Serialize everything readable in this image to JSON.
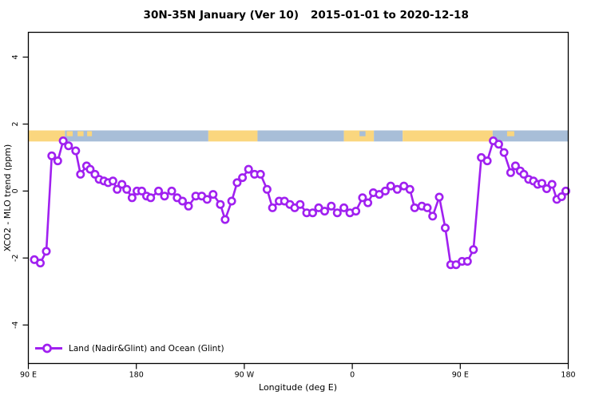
{
  "figure": {
    "title_part1": "30N-35N January (Ver 10)",
    "title_part2": "2015-01-01 to 2020-12-18"
  },
  "chart_data": {
    "type": "line",
    "title": "30N-35N January (Ver 10)   2015-01-01 to 2020-12-18",
    "xlabel": "Longitude (deg E)",
    "ylabel": "XCO2 - MLO trend (ppm)",
    "xlim": [
      90,
      540
    ],
    "ylim": [
      -5.15,
      4.74
    ],
    "grid": false,
    "xticks": {
      "values": [
        90,
        180,
        270,
        360,
        450,
        540
      ],
      "labels": [
        "90 E",
        "180",
        "90 W",
        "0",
        "90 E",
        "180"
      ]
    },
    "yticks": {
      "values": [
        -4,
        -2,
        0,
        2,
        4
      ],
      "labels": [
        "-4",
        "-2",
        "0",
        "2",
        "4"
      ]
    },
    "legend": {
      "position": "bottom-left",
      "entries": [
        "Land (Nadir&Glint) and Ocean (Glint)"
      ]
    },
    "colors": {
      "line": "#A020F0",
      "marker_fill": "#ffffff",
      "land": "#FAD67E",
      "ocean": "#A8BED8",
      "axis": "#000000"
    },
    "surface_band": {
      "y_from": 1.48,
      "y_to": 1.81,
      "segments": [
        {
          "from": 90,
          "to": 120.5,
          "surface": "land"
        },
        {
          "from": 120.5,
          "to": 240,
          "surface": "ocean"
        },
        {
          "from": 240,
          "to": 281,
          "surface": "land"
        },
        {
          "from": 281,
          "to": 353,
          "surface": "ocean"
        },
        {
          "from": 353,
          "to": 378,
          "surface": "land"
        },
        {
          "from": 378,
          "to": 402,
          "surface": "ocean"
        },
        {
          "from": 402,
          "to": 477,
          "surface": "land"
        },
        {
          "from": 477,
          "to": 540,
          "surface": "ocean"
        }
      ],
      "speckles": [
        {
          "from": 122,
          "to": 127,
          "surface": "land"
        },
        {
          "from": 131,
          "to": 136,
          "surface": "land"
        },
        {
          "from": 139,
          "to": 143,
          "surface": "land"
        },
        {
          "from": 366,
          "to": 371,
          "surface": "ocean"
        },
        {
          "from": 489,
          "to": 495,
          "surface": "land"
        }
      ]
    },
    "series": [
      {
        "name": "Land (Nadir&Glint) and Ocean (Glint)",
        "marker": "open-circle",
        "points": [
          [
            95,
            -2.05
          ],
          [
            100,
            -2.15
          ],
          [
            105,
            -1.8
          ],
          [
            109.5,
            1.05
          ],
          [
            114.5,
            0.9
          ],
          [
            119,
            1.5
          ],
          [
            123.5,
            1.35
          ],
          [
            129.5,
            1.2
          ],
          [
            133.5,
            0.5
          ],
          [
            138.5,
            0.75
          ],
          [
            141.5,
            0.65
          ],
          [
            145.5,
            0.5
          ],
          [
            149,
            0.35
          ],
          [
            153,
            0.3
          ],
          [
            156.5,
            0.25
          ],
          [
            160.5,
            0.3
          ],
          [
            164,
            0.05
          ],
          [
            168,
            0.2
          ],
          [
            172,
            0.05
          ],
          [
            176.5,
            -0.2
          ],
          [
            180.5,
            0
          ],
          [
            184.5,
            0
          ],
          [
            188.5,
            -0.15
          ],
          [
            192,
            -0.2
          ],
          [
            198.5,
            0
          ],
          [
            203.5,
            -0.15
          ],
          [
            209.5,
            0
          ],
          [
            214,
            -0.2
          ],
          [
            218.5,
            -0.3
          ],
          [
            223.5,
            -0.45
          ],
          [
            229.5,
            -0.15
          ],
          [
            234.5,
            -0.15
          ],
          [
            239,
            -0.25
          ],
          [
            244,
            -0.1
          ],
          [
            250,
            -0.4
          ],
          [
            254,
            -0.85
          ],
          [
            259.5,
            -0.3
          ],
          [
            264,
            0.25
          ],
          [
            268.5,
            0.4
          ],
          [
            273.5,
            0.65
          ],
          [
            278.5,
            0.5
          ],
          [
            283.5,
            0.5
          ],
          [
            289,
            0.05
          ],
          [
            293.5,
            -0.5
          ],
          [
            299,
            -0.3
          ],
          [
            303.5,
            -0.3
          ],
          [
            308,
            -0.4
          ],
          [
            312,
            -0.5
          ],
          [
            316.5,
            -0.4
          ],
          [
            322,
            -0.65
          ],
          [
            327,
            -0.65
          ],
          [
            332,
            -0.5
          ],
          [
            337,
            -0.6
          ],
          [
            342.5,
            -0.45
          ],
          [
            347.5,
            -0.65
          ],
          [
            353,
            -0.5
          ],
          [
            358,
            -0.65
          ],
          [
            363,
            -0.6
          ],
          [
            368.5,
            -0.2
          ],
          [
            373,
            -0.35
          ],
          [
            377.5,
            -0.05
          ],
          [
            382.5,
            -0.1
          ],
          [
            387.5,
            0
          ],
          [
            392,
            0.15
          ],
          [
            397.5,
            0.05
          ],
          [
            403,
            0.15
          ],
          [
            408,
            0.05
          ],
          [
            412,
            -0.5
          ],
          [
            418,
            -0.45
          ],
          [
            422.5,
            -0.5
          ],
          [
            427,
            -0.75
          ],
          [
            432.5,
            -0.18
          ],
          [
            437.5,
            -1.1
          ],
          [
            442,
            -2.2
          ],
          [
            446.5,
            -2.2
          ],
          [
            451.5,
            -2.1
          ],
          [
            456,
            -2.1
          ],
          [
            461,
            -1.75
          ],
          [
            467.5,
            1
          ],
          [
            472.5,
            0.9
          ],
          [
            477.5,
            1.5
          ],
          [
            482,
            1.4
          ],
          [
            486.5,
            1.15
          ],
          [
            492,
            0.55
          ],
          [
            496,
            0.75
          ],
          [
            500,
            0.6
          ],
          [
            503,
            0.5
          ],
          [
            507,
            0.35
          ],
          [
            511,
            0.3
          ],
          [
            514.5,
            0.2
          ],
          [
            518,
            0.23
          ],
          [
            522,
            0.07
          ],
          [
            526.5,
            0.2
          ],
          [
            530.5,
            -0.25
          ],
          [
            534.5,
            -0.17
          ],
          [
            538,
            0
          ]
        ]
      }
    ]
  }
}
